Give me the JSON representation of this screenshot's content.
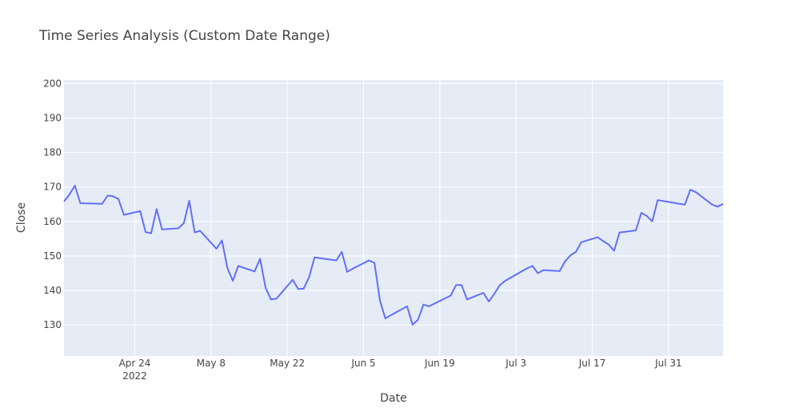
{
  "chart_data": {
    "type": "line",
    "title": "Time Series Analysis (Custom Date Range)",
    "xlabel": "Date",
    "ylabel": "Close",
    "x_range": [
      "2022-04-11",
      "2022-08-10"
    ],
    "ylim": [
      121,
      201
    ],
    "y_ticks": [
      130,
      140,
      150,
      160,
      170,
      180,
      190,
      200
    ],
    "x_ticks": [
      {
        "date": "2022-04-24",
        "label": "Apr 24",
        "sublabel": "2022"
      },
      {
        "date": "2022-05-08",
        "label": "May 8",
        "sublabel": ""
      },
      {
        "date": "2022-05-22",
        "label": "May 22",
        "sublabel": ""
      },
      {
        "date": "2022-06-05",
        "label": "Jun 5",
        "sublabel": ""
      },
      {
        "date": "2022-06-19",
        "label": "Jun 19",
        "sublabel": ""
      },
      {
        "date": "2022-07-03",
        "label": "Jul 3",
        "sublabel": ""
      },
      {
        "date": "2022-07-17",
        "label": "Jul 17",
        "sublabel": ""
      },
      {
        "date": "2022-07-31",
        "label": "Jul 31",
        "sublabel": ""
      }
    ],
    "grid": true,
    "legend": "none",
    "colors": {
      "line": "#636efa",
      "plot_bg": "#e5ecf6",
      "grid": "#ffffff",
      "text": "#444444"
    },
    "series": [
      {
        "x": [
          "2022-04-11",
          "2022-04-12",
          "2022-04-13",
          "2022-04-14",
          "2022-04-18",
          "2022-04-19",
          "2022-04-20",
          "2022-04-21",
          "2022-04-22",
          "2022-04-25",
          "2022-04-26",
          "2022-04-27",
          "2022-04-28",
          "2022-04-29",
          "2022-05-02",
          "2022-05-03",
          "2022-05-04",
          "2022-05-05",
          "2022-05-06",
          "2022-05-09",
          "2022-05-10",
          "2022-05-11",
          "2022-05-12",
          "2022-05-13",
          "2022-05-16",
          "2022-05-17",
          "2022-05-18",
          "2022-05-19",
          "2022-05-20",
          "2022-05-23",
          "2022-05-24",
          "2022-05-25",
          "2022-05-26",
          "2022-05-27",
          "2022-05-31",
          "2022-06-01",
          "2022-06-02",
          "2022-06-03",
          "2022-06-06",
          "2022-06-07",
          "2022-06-08",
          "2022-06-09",
          "2022-06-10",
          "2022-06-13",
          "2022-06-14",
          "2022-06-15",
          "2022-06-16",
          "2022-06-17",
          "2022-06-21",
          "2022-06-22",
          "2022-06-23",
          "2022-06-24",
          "2022-06-27",
          "2022-06-28",
          "2022-06-29",
          "2022-06-30",
          "2022-07-01",
          "2022-07-05",
          "2022-07-06",
          "2022-07-07",
          "2022-07-08",
          "2022-07-11",
          "2022-07-12",
          "2022-07-13",
          "2022-07-14",
          "2022-07-15",
          "2022-07-18",
          "2022-07-19",
          "2022-07-20",
          "2022-07-21",
          "2022-07-22",
          "2022-07-25",
          "2022-07-26",
          "2022-07-27",
          "2022-07-28",
          "2022-07-29",
          "2022-08-01",
          "2022-08-02",
          "2022-08-03",
          "2022-08-04",
          "2022-08-05",
          "2022-08-08",
          "2022-08-09",
          "2022-08-10"
        ],
        "y": [
          165.8,
          167.8,
          170.4,
          165.3,
          165.1,
          167.5,
          167.3,
          166.5,
          161.9,
          163.0,
          156.9,
          156.6,
          163.6,
          157.7,
          158.0,
          159.5,
          166.0,
          156.8,
          157.3,
          152.1,
          154.5,
          146.5,
          142.8,
          147.1,
          145.5,
          149.2,
          140.8,
          137.4,
          137.6,
          143.1,
          140.4,
          140.5,
          143.8,
          149.6,
          148.7,
          151.2,
          145.4,
          146.3,
          148.7,
          148.0,
          137.1,
          131.9,
          132.8,
          135.4,
          130.1,
          131.5,
          135.9,
          135.4,
          138.5,
          141.6,
          141.6,
          137.4,
          139.3,
          136.8,
          139.0,
          141.5,
          142.8,
          146.4,
          147.1,
          145.0,
          145.9,
          145.6,
          148.4,
          150.2,
          151.2,
          154.0,
          155.4,
          154.3,
          153.3,
          151.5,
          156.8,
          157.4,
          162.5,
          161.6,
          160.0,
          166.2,
          165.4,
          165.1,
          164.9,
          169.2,
          168.5,
          164.9,
          164.3,
          165.1
        ]
      }
    ]
  }
}
